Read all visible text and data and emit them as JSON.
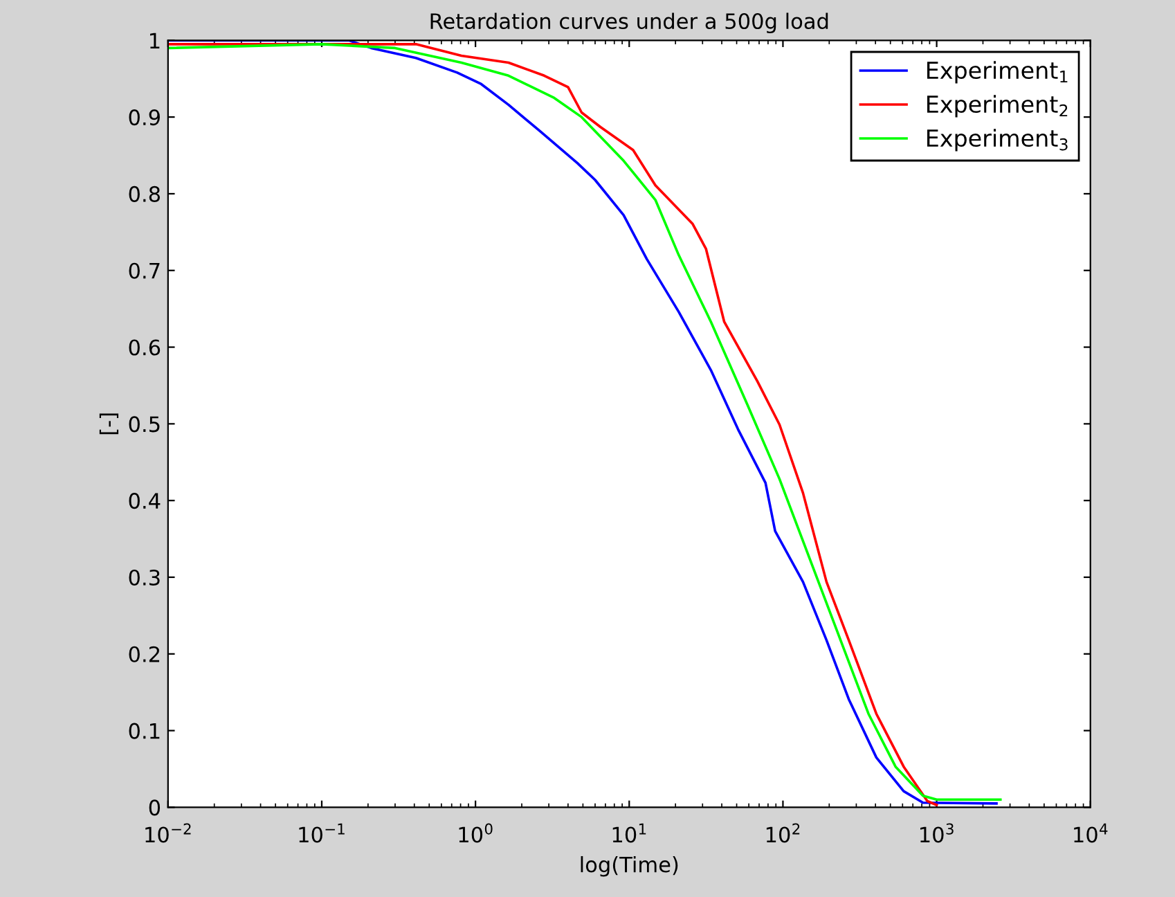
{
  "chart_data": {
    "type": "line",
    "title": "Retardation curves under a 500g load",
    "xlabel": "log(Time)",
    "ylabel": "[-]",
    "log": "x",
    "xlim": [
      0.01,
      10000
    ],
    "ylim": [
      0,
      1
    ],
    "xticks": [
      {
        "value": 0.01,
        "label": "10$^{−2}$"
      },
      {
        "value": 0.1,
        "label": "10$^{−1}$"
      },
      {
        "value": 1,
        "label": "10$^{0}$"
      },
      {
        "value": 10,
        "label": "10$^{1}$"
      },
      {
        "value": 100,
        "label": "10$^{2}$"
      },
      {
        "value": 1000,
        "label": "10$^{3}$"
      },
      {
        "value": 10000,
        "label": "10$^{4}$"
      }
    ],
    "yticks": [
      0,
      0.1,
      0.2,
      0.3,
      0.4,
      0.5,
      0.6,
      0.7,
      0.8,
      0.9,
      1
    ],
    "grid": false,
    "legend": "top right",
    "marker": "none",
    "line_style": "solid",
    "series": [
      {
        "name": "Experiment$_{1}$",
        "color": "#0000ff",
        "x": [
          0.01,
          0.15,
          0.21,
          0.41,
          0.76,
          1.09,
          1.64,
          2.65,
          4.6,
          6.0,
          9.2,
          13,
          21,
          34,
          51,
          77,
          89,
          135,
          192,
          268,
          405,
          610,
          815,
          2450
        ],
        "values": [
          1,
          1,
          0.99,
          0.977,
          0.958,
          0.943,
          0.916,
          0.881,
          0.84,
          0.818,
          0.772,
          0.715,
          0.646,
          0.57,
          0.493,
          0.423,
          0.36,
          0.294,
          0.218,
          0.141,
          0.065,
          0.021,
          0.006,
          0.005
        ]
      },
      {
        "name": "Experiment$_{2}$",
        "color": "#ff0000",
        "x": [
          0.01,
          0.41,
          0.81,
          1.64,
          2.8,
          4.0,
          4.9,
          6.5,
          10.6,
          14.8,
          25.8,
          31.6,
          41.5,
          68,
          95,
          135,
          192,
          268,
          405,
          610,
          870,
          1000
        ],
        "values": [
          0.995,
          0.995,
          0.98,
          0.971,
          0.954,
          0.939,
          0.906,
          0.887,
          0.857,
          0.811,
          0.761,
          0.728,
          0.633,
          0.556,
          0.499,
          0.41,
          0.294,
          0.218,
          0.122,
          0.053,
          0.008,
          0.003
        ]
      },
      {
        "name": "Experiment$_{3}$",
        "color": "#00ff00",
        "x": [
          0.01,
          0.1,
          0.3,
          0.81,
          1.64,
          3.25,
          4.9,
          9.2,
          14.8,
          21,
          34,
          59,
          95,
          156,
          237,
          360,
          540,
          815,
          1000,
          2600
        ],
        "values": [
          0.99,
          0.995,
          0.99,
          0.971,
          0.954,
          0.925,
          0.9,
          0.843,
          0.792,
          0.72,
          0.633,
          0.524,
          0.428,
          0.314,
          0.218,
          0.122,
          0.053,
          0.015,
          0.01,
          0.01
        ]
      }
    ]
  }
}
